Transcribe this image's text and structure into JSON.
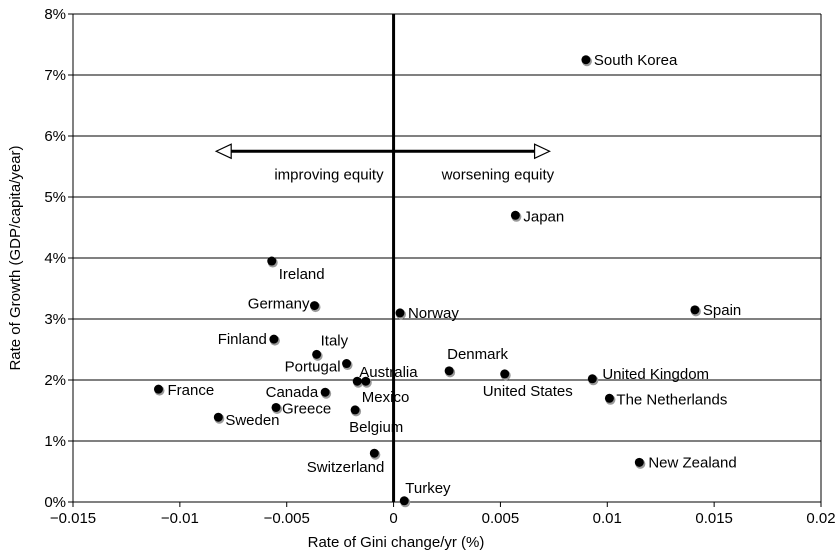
{
  "chart_data": {
    "type": "scatter",
    "xlabel": "Rate of Gini change/yr (%)",
    "ylabel": "Rate of Growth (GDP/capita/year)",
    "xlim": [
      -0.015,
      0.02
    ],
    "ylim": [
      0,
      8
    ],
    "x_ticks": [
      -0.015,
      -0.01,
      -0.005,
      0,
      0.005,
      0.01,
      0.015,
      0.02
    ],
    "x_tick_labels": [
      "−0.015",
      "−0.01",
      "−0.005",
      "0",
      "0.005",
      "0.01",
      "0.015",
      "0.02"
    ],
    "y_ticks": [
      0,
      1,
      2,
      3,
      4,
      5,
      6,
      7,
      8
    ],
    "y_tick_labels": [
      "0%",
      "1%",
      "2%",
      "3%",
      "4%",
      "5%",
      "6%",
      "7%",
      "8%"
    ],
    "grid": "horizontal",
    "point_color": "#000000",
    "points": [
      {
        "label": "South Korea",
        "x": 0.009,
        "y": 7.25
      },
      {
        "label": "Japan",
        "x": 0.0057,
        "y": 4.7
      },
      {
        "label": "Ireland",
        "x": -0.0057,
        "y": 3.95
      },
      {
        "label": "Germany",
        "x": -0.0037,
        "y": 3.22
      },
      {
        "label": "Norway",
        "x": 0.0003,
        "y": 3.1
      },
      {
        "label": "Spain",
        "x": 0.0141,
        "y": 3.15
      },
      {
        "label": "Finland",
        "x": -0.0056,
        "y": 2.67
      },
      {
        "label": "Italy",
        "x": -0.0036,
        "y": 2.42
      },
      {
        "label": "Portugal",
        "x": -0.0022,
        "y": 2.27
      },
      {
        "label": "Australia",
        "x": -0.0017,
        "y": 1.98
      },
      {
        "label": "Mexico",
        "x": -0.0013,
        "y": 1.98
      },
      {
        "label": "Denmark",
        "x": 0.0026,
        "y": 2.15
      },
      {
        "label": "United States",
        "x": 0.0052,
        "y": 2.1
      },
      {
        "label": "United Kingdom",
        "x": 0.0093,
        "y": 2.02
      },
      {
        "label": "France",
        "x": -0.011,
        "y": 1.85
      },
      {
        "label": "Canada",
        "x": -0.0032,
        "y": 1.8
      },
      {
        "label": "The Netherlands",
        "x": 0.0101,
        "y": 1.7
      },
      {
        "label": "Greece",
        "x": -0.0055,
        "y": 1.55
      },
      {
        "label": "Belgium",
        "x": -0.0018,
        "y": 1.51
      },
      {
        "label": "Sweden",
        "x": -0.0082,
        "y": 1.39
      },
      {
        "label": "Switzerland",
        "x": -0.0009,
        "y": 0.8
      },
      {
        "label": "New Zealand",
        "x": 0.0115,
        "y": 0.65
      },
      {
        "label": "Turkey",
        "x": 0.0005,
        "y": 0.02
      }
    ],
    "annotations": {
      "left": "improving equity",
      "right": "worsening equity",
      "arrow_y": 5.75,
      "arrow_x_range": [
        -0.0083,
        0.0073
      ]
    }
  }
}
